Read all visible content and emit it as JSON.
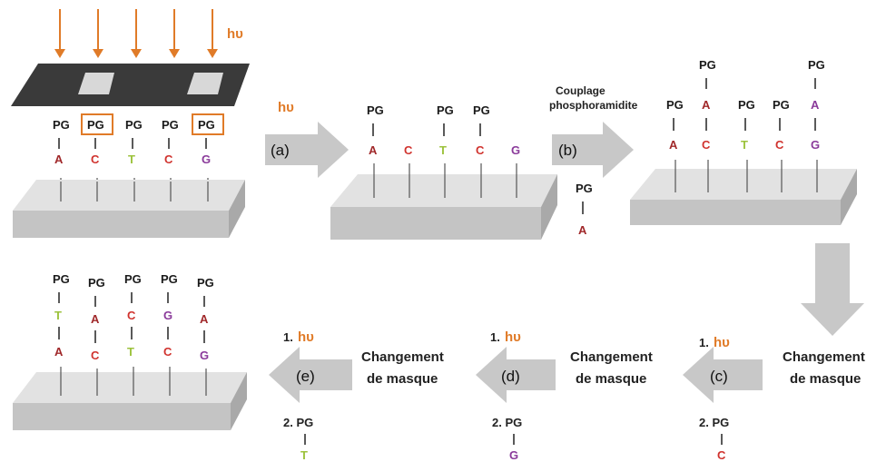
{
  "colors": {
    "A": "#a0282a",
    "C": "#d0332e",
    "T": "#9cc23c",
    "G": "#8a3a9a",
    "hv": "#e07b28",
    "arrow": "#c8c8c8",
    "mask": "#3a3a3a",
    "slab_top": "#e2e2e2",
    "slab_front": "#bdbdbd"
  },
  "light_label": "hυ",
  "protecting_group": "PG",
  "panel1": {
    "pg_labels": [
      "PG",
      "PG",
      "PG",
      "PG",
      "PG"
    ],
    "bases": [
      "A",
      "C",
      "T",
      "C",
      "G"
    ],
    "boxed_positions": [
      1,
      4
    ]
  },
  "step_a": {
    "label": "(a)",
    "light": "hυ"
  },
  "panel2": {
    "bases": [
      "A",
      "C",
      "T",
      "C",
      "G"
    ],
    "pg_present": [
      true,
      false,
      true,
      true,
      false
    ]
  },
  "step_b": {
    "label": "(b)",
    "caption_line1": "Couplage",
    "caption_line2": "phosphoramidite",
    "monomer_pg": "PG",
    "monomer_base": "A"
  },
  "panel3": {
    "bases": [
      "A",
      "C",
      "T",
      "C",
      "G"
    ],
    "added": [
      "",
      "A",
      "",
      "",
      "A"
    ],
    "pg_labels": [
      "PG",
      "PG",
      "PG",
      "PG",
      "PG"
    ]
  },
  "change_mask_1": {
    "line1": "Changement",
    "line2": "de masque"
  },
  "step_c": {
    "label": "(c)",
    "num1": "1.",
    "light": "hυ",
    "num2": "2. PG",
    "base": "C"
  },
  "change_mask_2": {
    "line1": "Changement",
    "line2": "de masque"
  },
  "step_d": {
    "label": "(d)",
    "num1": "1.",
    "light": "hυ",
    "num2": "2. PG",
    "base": "G"
  },
  "change_mask_3": {
    "line1": "Changement",
    "line2": "de masque"
  },
  "step_e": {
    "label": "(e)",
    "num1": "1.",
    "light": "hυ",
    "num2": "2. PG",
    "base": "T"
  },
  "panel_final": {
    "pg_labels": [
      "PG",
      "PG",
      "PG",
      "PG",
      "PG"
    ],
    "top_bases": [
      "T",
      "A",
      "C",
      "G",
      "A"
    ],
    "bottom_bases": [
      "A",
      "C",
      "T",
      "C",
      "G"
    ]
  }
}
